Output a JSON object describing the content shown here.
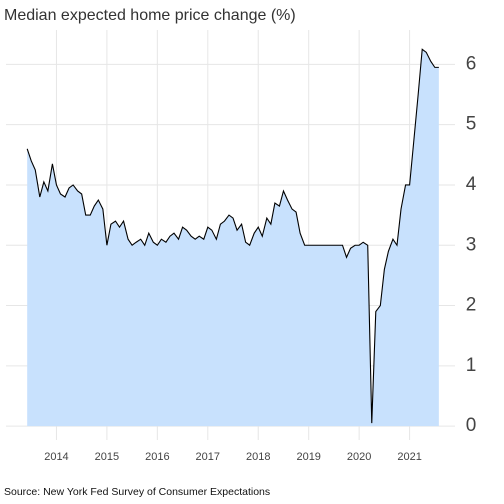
{
  "chart_data": {
    "type": "area",
    "title": "Median expected home price change (%)",
    "source": "Source: New York Fed Survey of Consumer Expectations",
    "color": "#c8e1fd",
    "line_color": "#000000",
    "xlim": [
      2013,
      2021.9
    ],
    "xticks": [
      2014,
      2015,
      2016,
      2017,
      2018,
      2019,
      2020,
      2021
    ],
    "ylim": [
      -0.23,
      6.57
    ],
    "yticks": [
      0,
      1,
      2,
      3,
      4,
      5,
      6
    ],
    "grid": true,
    "x": [
      2013.42,
      2013.5,
      2013.58,
      2013.67,
      2013.75,
      2013.83,
      2013.92,
      2014,
      2014.08,
      2014.17,
      2014.25,
      2014.33,
      2014.42,
      2014.5,
      2014.58,
      2014.67,
      2014.75,
      2014.83,
      2014.92,
      2015,
      2015.08,
      2015.17,
      2015.25,
      2015.33,
      2015.42,
      2015.5,
      2015.58,
      2015.67,
      2015.75,
      2015.83,
      2015.92,
      2016,
      2016.08,
      2016.17,
      2016.25,
      2016.33,
      2016.42,
      2016.5,
      2016.58,
      2016.67,
      2016.75,
      2016.83,
      2016.92,
      2017,
      2017.08,
      2017.17,
      2017.25,
      2017.33,
      2017.42,
      2017.5,
      2017.58,
      2017.67,
      2017.75,
      2017.83,
      2017.92,
      2018,
      2018.08,
      2018.17,
      2018.25,
      2018.33,
      2018.42,
      2018.5,
      2018.58,
      2018.67,
      2018.75,
      2018.83,
      2018.92,
      2019,
      2019.08,
      2019.17,
      2019.25,
      2019.33,
      2019.42,
      2019.5,
      2019.58,
      2019.67,
      2019.75,
      2019.83,
      2019.92,
      2020,
      2020.08,
      2020.17,
      2020.25,
      2020.33,
      2020.42,
      2020.5,
      2020.58,
      2020.67,
      2020.75,
      2020.83,
      2020.92,
      2021,
      2021.08,
      2021.17,
      2021.25,
      2021.33,
      2021.42,
      2021.5,
      2021.58
    ],
    "values": [
      4.6,
      4.4,
      4.25,
      3.8,
      4.05,
      3.9,
      4.35,
      4.0,
      3.85,
      3.8,
      3.95,
      4.0,
      3.9,
      3.85,
      3.5,
      3.5,
      3.65,
      3.75,
      3.6,
      3.0,
      3.35,
      3.4,
      3.3,
      3.4,
      3.1,
      3.0,
      3.05,
      3.1,
      3.0,
      3.2,
      3.05,
      3.0,
      3.1,
      3.05,
      3.15,
      3.2,
      3.1,
      3.3,
      3.25,
      3.15,
      3.1,
      3.15,
      3.1,
      3.3,
      3.25,
      3.1,
      3.35,
      3.4,
      3.5,
      3.45,
      3.25,
      3.35,
      3.05,
      3.0,
      3.2,
      3.3,
      3.15,
      3.45,
      3.35,
      3.7,
      3.65,
      3.9,
      3.75,
      3.6,
      3.55,
      3.2,
      3.0,
      3.0,
      3.0,
      3.0,
      3.0,
      3.0,
      3.0,
      3.0,
      3.0,
      3.0,
      2.8,
      2.95,
      3.0,
      3.0,
      3.05,
      3.0,
      0.05,
      1.9,
      2.0,
      2.6,
      2.9,
      3.1,
      3.0,
      3.6,
      4.0,
      4.0,
      4.7,
      5.5,
      6.25,
      6.2,
      6.05,
      5.95,
      5.95
    ]
  }
}
